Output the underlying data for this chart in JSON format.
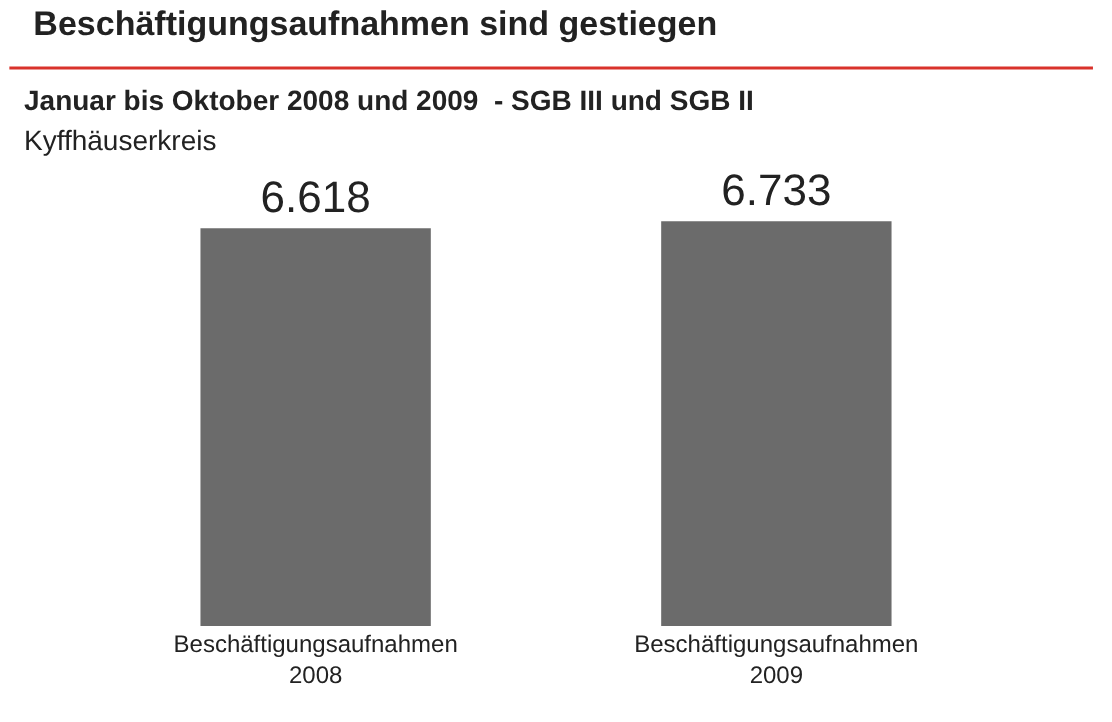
{
  "chart_data": {
    "type": "bar",
    "title": "Beschäftigungsaufnahmen sind gestiegen",
    "subtitle": "Januar bis Oktober 2008 und 2009  - SGB III und SGB II",
    "annotations": [
      "Kyffhäuserkreis"
    ],
    "categories": [
      "Beschäftigungsaufnahmen\n2008",
      "Beschäftigungsaufnahmen\n2009"
    ],
    "values": [
      6618,
      6733
    ],
    "color": "#6b6b6b",
    "value_labels": [
      "6.618",
      "6.733"
    ],
    "legend": false
  }
}
